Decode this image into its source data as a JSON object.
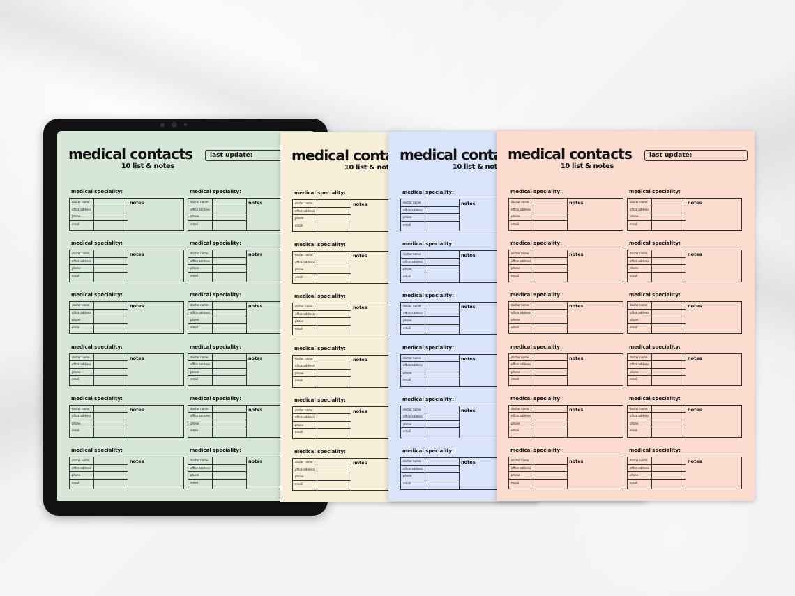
{
  "page": {
    "title": "medical contacts",
    "subtitle": "10 list & notes",
    "last_update": "last update:",
    "card": {
      "speciality": "medical speciality:",
      "fields": [
        "doctor name",
        "office address",
        "phone",
        "email"
      ],
      "notes": "notes"
    }
  },
  "pages": [
    {
      "color": "#d6e6d7"
    },
    {
      "color": "#f7efd8"
    },
    {
      "color": "#d9e4fb"
    },
    {
      "color": "#fcdccf"
    }
  ]
}
